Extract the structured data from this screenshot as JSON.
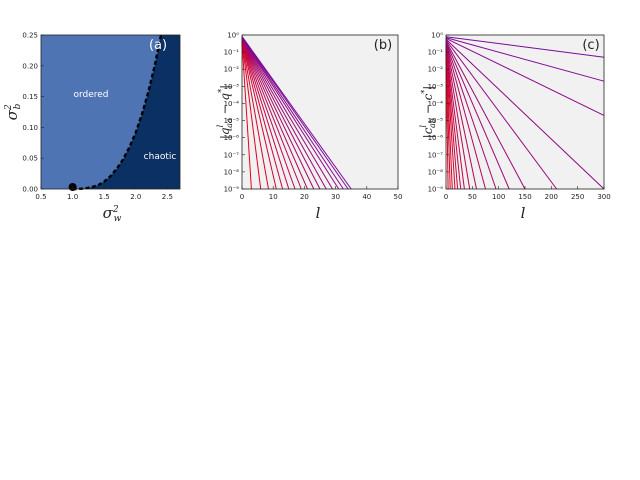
{
  "chart_data": [
    {
      "type": "area",
      "panel_label": "(a)",
      "xlim": [
        0.5,
        2.7
      ],
      "ylim": [
        0,
        0.25
      ],
      "x_ticks": [
        "0.5",
        "1.0",
        "1.5",
        "2.0",
        "2.5"
      ],
      "y_ticks": [
        "0.00",
        "0.05",
        "0.10",
        "0.15",
        "0.20",
        "0.25"
      ],
      "xlabel": "σ²_w",
      "ylabel": "σ²_b",
      "regions": [
        {
          "name": "ordered",
          "color": "#4f74b3"
        },
        {
          "name": "chaotic",
          "color": "#0b3063"
        }
      ],
      "boundary": {
        "x": [
          1.0,
          1.1,
          1.2,
          1.3,
          1.4,
          1.5,
          1.6,
          1.7,
          1.8,
          1.9,
          2.0,
          2.1,
          2.2,
          2.3,
          2.4
        ],
        "y": [
          0.0,
          0.0,
          0.001,
          0.003,
          0.006,
          0.012,
          0.021,
          0.033,
          0.048,
          0.068,
          0.092,
          0.122,
          0.158,
          0.2,
          0.25
        ]
      },
      "critical_point": {
        "x": 1.0,
        "y": 0.0
      }
    },
    {
      "type": "line",
      "panel_label": "(b)",
      "xlim": [
        0,
        50
      ],
      "yscale": "log",
      "ylim_exp": [
        -9,
        0
      ],
      "x_ticks": [
        "0",
        "10",
        "20",
        "30",
        "40",
        "50"
      ],
      "y_ticks": [
        "10⁰",
        "10⁻¹",
        "10⁻²",
        "10⁻³",
        "10⁻⁴",
        "10⁻⁵",
        "10⁻⁶",
        "10⁻⁷",
        "10⁻⁸",
        "10⁻⁹"
      ],
      "xlabel": "l",
      "ylabel": "|qˡ_aa − q*|",
      "color_start": "#e8001c",
      "color_end": "#7a0a9c",
      "start_log10": [
        -0.4,
        -0.38,
        -0.36,
        -0.34,
        -0.32,
        -0.3,
        -0.28,
        -0.26,
        -0.24,
        -0.22,
        -0.2,
        -0.18,
        -0.16,
        -0.14,
        -0.12,
        -0.1,
        -0.08
      ],
      "end_x": [
        3,
        6,
        8.5,
        11,
        13,
        15,
        17,
        19,
        21,
        23,
        25,
        27,
        29,
        31,
        32.5,
        34,
        35
      ]
    },
    {
      "type": "line",
      "panel_label": "(c)",
      "xlim": [
        0,
        300
      ],
      "yscale": "log",
      "ylim_exp": [
        -9,
        0
      ],
      "x_ticks": [
        "0",
        "50",
        "100",
        "150",
        "200",
        "250",
        "300"
      ],
      "y_ticks": [
        "10⁰",
        "10⁻¹",
        "10⁻²",
        "10⁻³",
        "10⁻⁴",
        "10⁻⁵",
        "10⁻⁶",
        "10⁻⁷",
        "10⁻⁸",
        "10⁻⁹"
      ],
      "xlabel": "l",
      "ylabel": "|cˡ_ab − c*|",
      "color_start": "#e8001c",
      "color_end": "#7a0a9c",
      "start_log10": [
        -0.95,
        -0.9,
        -0.85,
        -0.8,
        -0.75,
        -0.7,
        -0.65,
        -0.6,
        -0.55,
        -0.5,
        -0.45,
        -0.4,
        -0.35,
        -0.3,
        -0.25,
        -0.2,
        -0.15,
        -0.1
      ],
      "end_x": [
        4,
        8,
        12,
        17,
        22,
        28,
        35,
        45,
        58,
        75,
        95,
        120,
        150,
        210,
        300,
        300,
        300,
        300
      ],
      "end_log10": [
        -9,
        -9,
        -9,
        -9,
        -9,
        -9,
        -9,
        -9,
        -9,
        -9,
        -9,
        -9,
        -9,
        -9,
        -9,
        -4.7,
        -2.7,
        -1.3
      ]
    }
  ]
}
